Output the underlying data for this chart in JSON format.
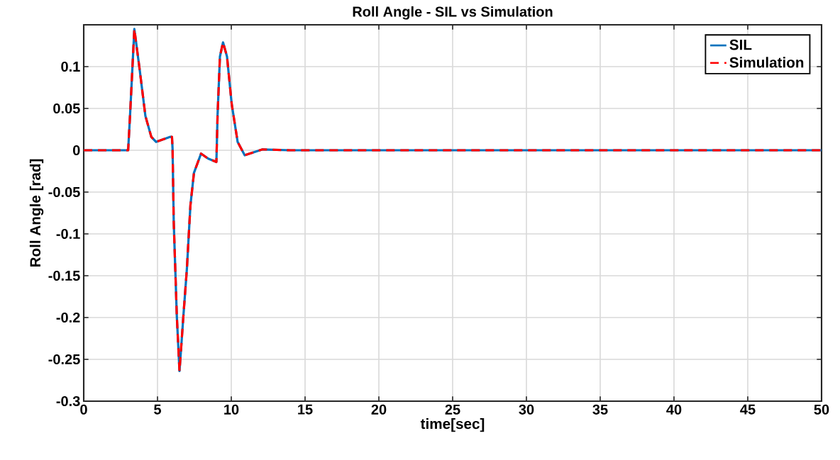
{
  "chart_data": {
    "type": "line",
    "title": "Roll Angle - SIL vs Simulation",
    "xlabel": "time[sec]",
    "ylabel": "Roll Angle [rad]",
    "x": [
      0,
      3.01,
      3.14,
      3.43,
      3.78,
      4.18,
      4.58,
      4.9,
      5.87,
      5.98,
      6.02,
      6.1,
      6.31,
      6.49,
      6.75,
      6.99,
      7.23,
      7.47,
      7.95,
      8.43,
      8.99,
      9.07,
      9.23,
      9.44,
      9.71,
      10.03,
      10.43,
      10.91,
      12.12,
      14,
      50
    ],
    "series": [
      {
        "name": "SIL",
        "color": "#0072bd",
        "line_style": "solid",
        "values": [
          0,
          0,
          0.042,
          0.145,
          0.098,
          0.041,
          0.016,
          0.01,
          0.016,
          0.016,
          0.002,
          -0.086,
          -0.199,
          -0.264,
          -0.199,
          -0.142,
          -0.066,
          -0.027,
          -0.004,
          -0.01,
          -0.014,
          0.042,
          0.112,
          0.129,
          0.112,
          0.055,
          0.01,
          -0.006,
          0.001,
          0,
          0
        ]
      },
      {
        "name": "Simulation",
        "color": "#ff0000",
        "line_style": "dashed",
        "values": [
          0,
          0,
          0.042,
          0.145,
          0.098,
          0.041,
          0.016,
          0.01,
          0.016,
          0.016,
          0.002,
          -0.086,
          -0.199,
          -0.264,
          -0.199,
          -0.142,
          -0.066,
          -0.027,
          -0.004,
          -0.01,
          -0.014,
          0.042,
          0.112,
          0.129,
          0.112,
          0.055,
          0.01,
          -0.006,
          0.001,
          0,
          0
        ]
      }
    ],
    "xlim": [
      0,
      50
    ],
    "ylim": [
      -0.3,
      0.15
    ],
    "xticks": [
      0,
      5,
      10,
      15,
      20,
      25,
      30,
      35,
      40,
      45,
      50
    ],
    "yticks": [
      -0.3,
      -0.25,
      -0.2,
      -0.15,
      -0.1,
      -0.05,
      0,
      0.05,
      0.1
    ],
    "grid": true,
    "legend": "top right",
    "marker": "none"
  }
}
